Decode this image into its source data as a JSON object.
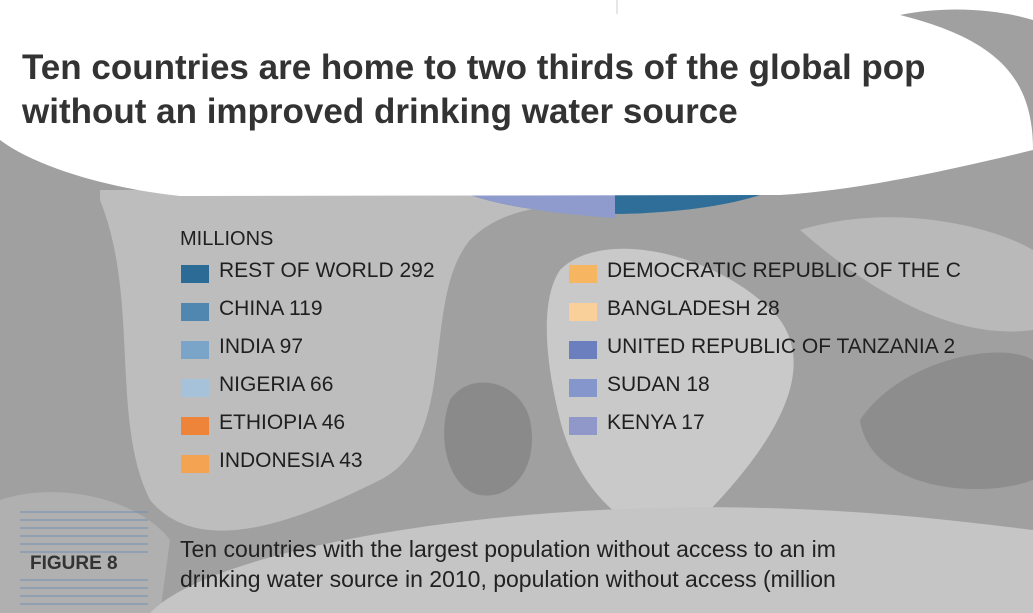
{
  "header": {
    "title_lines": [
      "Ten countries are home to two thirds of the global pop",
      "without an improved drinking water source"
    ]
  },
  "legend": {
    "heading": "MILLIONS",
    "items": [
      {
        "text": "REST OF WORLD 292",
        "color": "#2c6b95"
      },
      {
        "text": "CHINA 119",
        "color": "#4f87b0"
      },
      {
        "text": "INDIA 97",
        "color": "#7aa5c8"
      },
      {
        "text": "NIGERIA 66",
        "color": "#a6c2da"
      },
      {
        "text": "ETHIOPIA 46",
        "color": "#ee8439"
      },
      {
        "text": "INDONESIA 43",
        "color": "#f4a352"
      },
      {
        "text": "DEMOCRATIC REPUBLIC OF THE C",
        "color": "#f6b560"
      },
      {
        "text": "BANGLADESH 28",
        "color": "#f9cf9a"
      },
      {
        "text": "UNITED REPUBLIC OF TANZANIA 2",
        "color": "#6b7ebd"
      },
      {
        "text": "SUDAN 18",
        "color": "#8596cc"
      },
      {
        "text": "KENYA 17",
        "color": "#8f98c8"
      }
    ]
  },
  "figure": {
    "label": "FIGURE 8",
    "caption_lines": [
      "Ten countries with the largest population without access to an im",
      "drinking water source in 2010, population without access (million"
    ]
  }
}
